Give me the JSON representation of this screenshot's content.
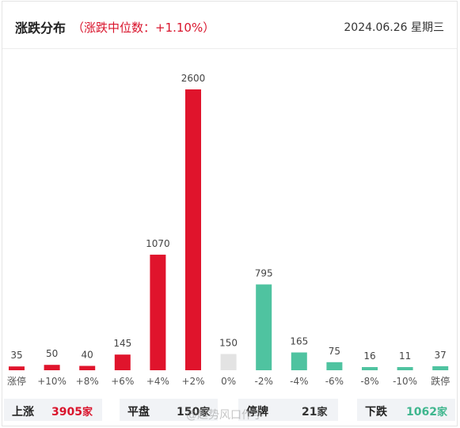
{
  "header": {
    "title": "涨跌分布",
    "subtitle": "（涨跌中位数：+1.10%）",
    "date": "2024.06.26 星期三"
  },
  "chart_data": {
    "type": "bar",
    "categories": [
      "涨停",
      "+10%",
      "+8%",
      "+6%",
      "+4%",
      "+2%",
      "0%",
      "-2%",
      "-4%",
      "-6%",
      "-8%",
      "-10%",
      "跌停"
    ],
    "values": [
      35,
      50,
      40,
      145,
      1070,
      2600,
      150,
      795,
      165,
      75,
      16,
      11,
      37
    ],
    "colors": [
      "#e0142c",
      "#e0142c",
      "#e0142c",
      "#e0142c",
      "#e0142c",
      "#e0142c",
      "#e3e3e3",
      "#4fc3a0",
      "#4fc3a0",
      "#4fc3a0",
      "#4fc3a0",
      "#4fc3a0",
      "#4fc3a0"
    ],
    "ylim": [
      0,
      2600
    ],
    "grid": false
  },
  "summary": {
    "up": {
      "label": "上涨",
      "value": "3905",
      "unit": "家"
    },
    "flat": {
      "label": "平盘",
      "value": "150",
      "unit": "家"
    },
    "halt": {
      "label": "停牌",
      "value": "21",
      "unit": "家"
    },
    "down": {
      "label": "下跌",
      "value": "1062",
      "unit": "家"
    }
  },
  "watermark": "@趋势风口作手"
}
